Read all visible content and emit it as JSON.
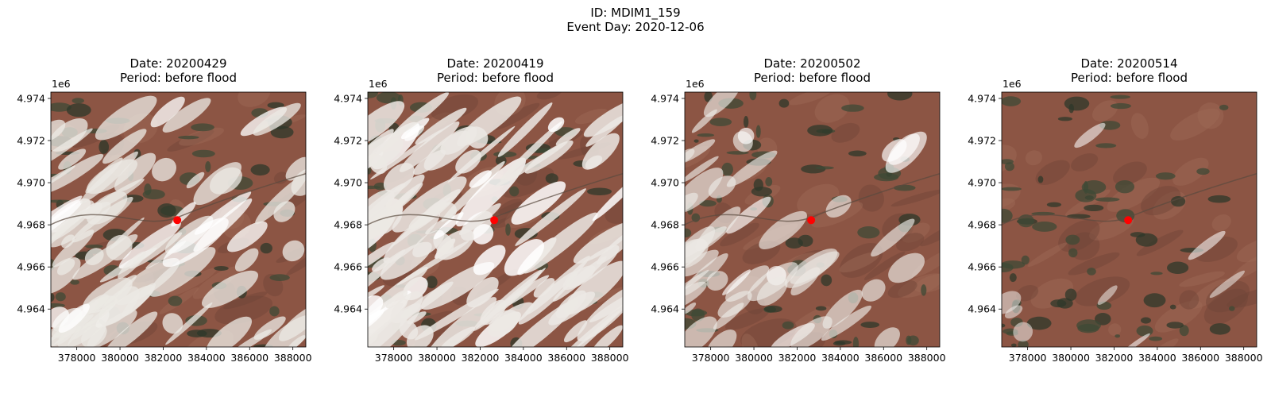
{
  "suptitle": {
    "line1": "ID: MDIM1_159",
    "line2": "Event Day: 2020-12-06"
  },
  "colors": {
    "marker": "#ff0000",
    "snow": "#ece9e4",
    "soil": "#8c5544",
    "forest": "#3e4a36"
  },
  "chart_data": [
    {
      "type": "image",
      "title": "Date: 20200429\nPeriod: before flood",
      "title_lines": [
        "Date: 20200429",
        "Period: before flood"
      ],
      "y_offset_label": "1e6",
      "xticks": [
        378000,
        380000,
        382000,
        384000,
        386000,
        388000
      ],
      "xtick_labels": [
        "378000",
        "380000",
        "382000",
        "384000",
        "386000",
        "388000"
      ],
      "yticks": [
        4.964,
        4.966,
        4.968,
        4.97,
        4.972,
        4.974
      ],
      "ytick_labels": [
        "4.964",
        "4.966",
        "4.968",
        "4.970",
        "4.972",
        "4.974"
      ],
      "xlim": [
        376800,
        388600
      ],
      "ylim": [
        4.9622,
        4.9743
      ],
      "marker": {
        "x": 382650,
        "y": 4.96822
      },
      "snow_cover": 0.55
    },
    {
      "type": "image",
      "title": "Date: 20200419\nPeriod: before flood",
      "title_lines": [
        "Date: 20200419",
        "Period: before flood"
      ],
      "y_offset_label": "1e6",
      "xticks": [
        378000,
        380000,
        382000,
        384000,
        386000,
        388000
      ],
      "xtick_labels": [
        "378000",
        "380000",
        "382000",
        "384000",
        "386000",
        "388000"
      ],
      "yticks": [
        4.964,
        4.966,
        4.968,
        4.97,
        4.972,
        4.974
      ],
      "ytick_labels": [
        "4.964",
        "4.966",
        "4.968",
        "4.970",
        "4.972",
        "4.974"
      ],
      "xlim": [
        376800,
        388600
      ],
      "ylim": [
        4.9622,
        4.9743
      ],
      "marker": {
        "x": 382650,
        "y": 4.96822
      },
      "snow_cover": 0.75
    },
    {
      "type": "image",
      "title": "Date: 20200502\nPeriod: before flood",
      "title_lines": [
        "Date: 20200502",
        "Period: before flood"
      ],
      "y_offset_label": "1e6",
      "xticks": [
        378000,
        380000,
        382000,
        384000,
        386000,
        388000
      ],
      "xtick_labels": [
        "378000",
        "380000",
        "382000",
        "384000",
        "386000",
        "388000"
      ],
      "yticks": [
        4.964,
        4.966,
        4.968,
        4.97,
        4.972,
        4.974
      ],
      "ytick_labels": [
        "4.964",
        "4.966",
        "4.968",
        "4.970",
        "4.972",
        "4.974"
      ],
      "xlim": [
        376800,
        388600
      ],
      "ylim": [
        4.9622,
        4.9743
      ],
      "marker": {
        "x": 382650,
        "y": 4.96822
      },
      "snow_cover": 0.3
    },
    {
      "type": "image",
      "title": "Date: 20200514\nPeriod: before flood",
      "title_lines": [
        "Date: 20200514",
        "Period: before flood"
      ],
      "y_offset_label": "1e6",
      "xticks": [
        378000,
        380000,
        382000,
        384000,
        386000,
        388000
      ],
      "xtick_labels": [
        "378000",
        "380000",
        "382000",
        "384000",
        "386000",
        "388000"
      ],
      "yticks": [
        4.964,
        4.966,
        4.968,
        4.97,
        4.972,
        4.974
      ],
      "ytick_labels": [
        "4.964",
        "4.966",
        "4.968",
        "4.970",
        "4.972",
        "4.974"
      ],
      "xlim": [
        376800,
        388600
      ],
      "ylim": [
        4.9622,
        4.9743
      ],
      "marker": {
        "x": 382650,
        "y": 4.96822
      },
      "snow_cover": 0.05
    }
  ]
}
